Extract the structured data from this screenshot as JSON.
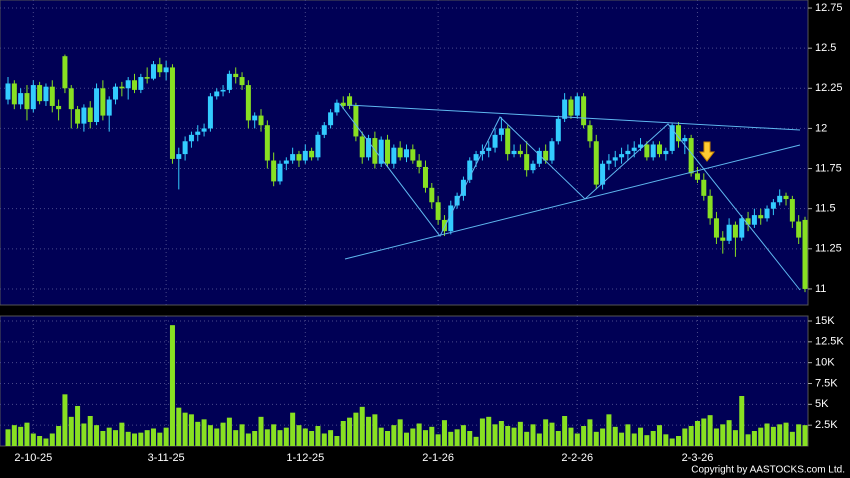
{
  "chart_data": {
    "type": "candlestick",
    "categories": [
      null,
      null,
      null,
      null,
      "2-10-25",
      null,
      null,
      null,
      null,
      null,
      null,
      null,
      null,
      null,
      null,
      null,
      null,
      null,
      null,
      null,
      null,
      null,
      null,
      null,
      null,
      "3-11-25",
      null,
      null,
      null,
      null,
      null,
      null,
      null,
      null,
      null,
      null,
      null,
      null,
      null,
      null,
      null,
      null,
      null,
      null,
      null,
      null,
      null,
      "1-12-25",
      null,
      null,
      null,
      null,
      null,
      null,
      null,
      null,
      null,
      null,
      null,
      null,
      null,
      null,
      null,
      null,
      null,
      null,
      null,
      null,
      "2-1-26",
      null,
      null,
      null,
      null,
      null,
      null,
      null,
      null,
      null,
      null,
      null,
      null,
      null,
      null,
      null,
      null,
      null,
      null,
      null,
      null,
      null,
      "2-2-26",
      null,
      null,
      null,
      null,
      null,
      null,
      null,
      null,
      null,
      null,
      null,
      null,
      null,
      null,
      null,
      null,
      null,
      null,
      "2-3-26",
      null,
      null,
      null,
      null,
      null,
      null,
      null,
      null,
      null,
      null,
      null,
      null,
      null,
      null,
      null,
      null,
      null
    ],
    "ohlc": [
      [
        12.18,
        12.32,
        12.15,
        12.28
      ],
      [
        12.28,
        12.3,
        12.12,
        12.15
      ],
      [
        12.15,
        12.25,
        12.12,
        12.22
      ],
      [
        12.22,
        12.27,
        12.05,
        12.12
      ],
      [
        12.12,
        12.3,
        12.1,
        12.27
      ],
      [
        12.27,
        12.29,
        12.15,
        12.17
      ],
      [
        12.17,
        12.28,
        12.14,
        12.26
      ],
      [
        12.26,
        12.3,
        12.1,
        12.14
      ],
      [
        12.14,
        12.18,
        12.05,
        12.12
      ],
      [
        12.45,
        12.46,
        12.22,
        12.25
      ],
      [
        12.25,
        12.27,
        12.0,
        12.12
      ],
      [
        12.12,
        12.14,
        12.0,
        12.03
      ],
      [
        12.03,
        12.15,
        11.98,
        12.13
      ],
      [
        12.13,
        12.17,
        12.0,
        12.04
      ],
      [
        12.04,
        12.28,
        12.02,
        12.25
      ],
      [
        12.25,
        12.3,
        12.05,
        12.08
      ],
      [
        12.08,
        12.2,
        11.98,
        12.18
      ],
      [
        12.18,
        12.28,
        12.15,
        12.26
      ],
      [
        12.26,
        12.29,
        12.2,
        12.25
      ],
      [
        12.25,
        12.32,
        12.18,
        12.3
      ],
      [
        12.3,
        12.34,
        12.22,
        12.24
      ],
      [
        12.24,
        12.34,
        12.22,
        12.32
      ],
      [
        12.32,
        12.38,
        12.28,
        12.31
      ],
      [
        12.31,
        12.42,
        12.3,
        12.4
      ],
      [
        12.4,
        12.44,
        12.32,
        12.35
      ],
      [
        12.35,
        12.42,
        12.3,
        12.38
      ],
      [
        12.38,
        12.4,
        11.78,
        11.81
      ],
      [
        11.81,
        11.88,
        11.62,
        11.84
      ],
      [
        11.84,
        11.95,
        11.8,
        11.92
      ],
      [
        11.92,
        11.98,
        11.88,
        11.96
      ],
      [
        11.96,
        12.02,
        11.92,
        11.98
      ],
      [
        11.98,
        12.03,
        11.95,
        12.0
      ],
      [
        12.0,
        12.22,
        11.98,
        12.2
      ],
      [
        12.2,
        12.25,
        12.18,
        12.23
      ],
      [
        12.23,
        12.27,
        12.2,
        12.24
      ],
      [
        12.24,
        12.36,
        12.22,
        12.34
      ],
      [
        12.34,
        12.38,
        12.28,
        12.32
      ],
      [
        12.32,
        12.35,
        12.24,
        12.27
      ],
      [
        12.27,
        12.3,
        12.0,
        12.05
      ],
      [
        12.05,
        12.1,
        12.0,
        12.08
      ],
      [
        12.08,
        12.12,
        11.98,
        12.02
      ],
      [
        12.02,
        12.05,
        11.75,
        11.8
      ],
      [
        11.8,
        11.85,
        11.64,
        11.67
      ],
      [
        11.67,
        11.8,
        11.65,
        11.78
      ],
      [
        11.78,
        11.82,
        11.74,
        11.8
      ],
      [
        11.8,
        11.88,
        11.78,
        11.84
      ],
      [
        11.84,
        11.86,
        11.76,
        11.8
      ],
      [
        11.8,
        11.9,
        11.78,
        11.86
      ],
      [
        11.86,
        11.88,
        11.8,
        11.82
      ],
      [
        11.82,
        11.98,
        11.8,
        11.96
      ],
      [
        11.96,
        12.04,
        11.94,
        12.02
      ],
      [
        12.02,
        12.12,
        12.0,
        12.1
      ],
      [
        12.1,
        12.18,
        12.08,
        12.16
      ],
      [
        12.16,
        12.2,
        12.12,
        12.14
      ],
      [
        12.2,
        12.22,
        12.12,
        12.14
      ],
      [
        12.14,
        12.16,
        11.92,
        11.95
      ],
      [
        11.95,
        11.98,
        11.78,
        11.82
      ],
      [
        11.82,
        11.96,
        11.8,
        11.94
      ],
      [
        11.94,
        11.98,
        11.75,
        11.78
      ],
      [
        11.78,
        11.95,
        11.76,
        11.93
      ],
      [
        11.93,
        11.96,
        11.76,
        11.78
      ],
      [
        11.78,
        11.9,
        11.75,
        11.88
      ],
      [
        11.88,
        11.92,
        11.8,
        11.82
      ],
      [
        11.82,
        11.9,
        11.79,
        11.87
      ],
      [
        11.87,
        11.9,
        11.78,
        11.8
      ],
      [
        11.8,
        11.84,
        11.72,
        11.76
      ],
      [
        11.76,
        11.8,
        11.6,
        11.63
      ],
      [
        11.63,
        11.66,
        11.5,
        11.54
      ],
      [
        11.54,
        11.58,
        11.4,
        11.43
      ],
      [
        11.43,
        11.46,
        11.33,
        11.36
      ],
      [
        11.36,
        11.55,
        11.34,
        11.52
      ],
      [
        11.52,
        11.6,
        11.5,
        11.58
      ],
      [
        11.58,
        11.7,
        11.55,
        11.68
      ],
      [
        11.68,
        11.82,
        11.66,
        11.8
      ],
      [
        11.8,
        11.86,
        11.76,
        11.84
      ],
      [
        11.84,
        11.9,
        11.8,
        11.86
      ],
      [
        11.86,
        11.92,
        11.82,
        11.88
      ],
      [
        11.88,
        12.0,
        11.85,
        11.96
      ],
      [
        11.96,
        12.07,
        11.92,
        12.0
      ],
      [
        12.0,
        12.02,
        11.8,
        11.84
      ],
      [
        11.84,
        11.9,
        11.82,
        11.86
      ],
      [
        11.86,
        11.9,
        11.82,
        11.84
      ],
      [
        11.84,
        11.92,
        11.7,
        11.74
      ],
      [
        11.74,
        11.8,
        11.72,
        11.78
      ],
      [
        11.78,
        11.88,
        11.76,
        11.86
      ],
      [
        11.86,
        11.9,
        11.78,
        11.8
      ],
      [
        11.8,
        11.94,
        11.78,
        11.92
      ],
      [
        11.92,
        12.08,
        11.9,
        12.06
      ],
      [
        12.06,
        12.22,
        12.04,
        12.18
      ],
      [
        12.18,
        12.2,
        12.06,
        12.08
      ],
      [
        12.08,
        12.22,
        12.06,
        12.2
      ],
      [
        12.2,
        12.22,
        12.0,
        12.02
      ],
      [
        12.02,
        12.05,
        11.88,
        11.92
      ],
      [
        11.92,
        11.96,
        11.62,
        11.65
      ],
      [
        11.65,
        11.8,
        11.62,
        11.78
      ],
      [
        11.78,
        11.84,
        11.74,
        11.8
      ],
      [
        11.8,
        11.86,
        11.76,
        11.82
      ],
      [
        11.82,
        11.88,
        11.78,
        11.84
      ],
      [
        11.84,
        11.9,
        11.8,
        11.86
      ],
      [
        11.86,
        11.92,
        11.82,
        11.88
      ],
      [
        11.88,
        11.94,
        11.86,
        11.9
      ],
      [
        11.9,
        11.92,
        11.8,
        11.82
      ],
      [
        11.82,
        11.92,
        11.8,
        11.9
      ],
      [
        11.9,
        11.92,
        11.82,
        11.84
      ],
      [
        11.84,
        11.88,
        11.8,
        11.86
      ],
      [
        11.86,
        12.03,
        11.84,
        12.02
      ],
      [
        12.02,
        12.04,
        11.88,
        11.92
      ],
      [
        11.92,
        11.96,
        11.84,
        11.94
      ],
      [
        11.94,
        11.96,
        11.7,
        11.72
      ],
      [
        11.72,
        11.76,
        11.66,
        11.68
      ],
      [
        11.68,
        11.72,
        11.55,
        11.58
      ],
      [
        11.58,
        11.62,
        11.4,
        11.44
      ],
      [
        11.44,
        11.48,
        11.28,
        11.32
      ],
      [
        11.32,
        11.36,
        11.22,
        11.3
      ],
      [
        11.3,
        11.44,
        11.28,
        11.4
      ],
      [
        11.4,
        11.42,
        11.2,
        11.32
      ],
      [
        11.32,
        11.46,
        11.3,
        11.44
      ],
      [
        11.44,
        11.48,
        11.36,
        11.4
      ],
      [
        11.4,
        11.5,
        11.38,
        11.46
      ],
      [
        11.46,
        11.5,
        11.4,
        11.44
      ],
      [
        11.44,
        11.52,
        11.42,
        11.5
      ],
      [
        11.5,
        11.56,
        11.46,
        11.54
      ],
      [
        11.54,
        11.62,
        11.52,
        11.58
      ],
      [
        11.58,
        11.6,
        11.52,
        11.56
      ],
      [
        11.56,
        11.58,
        11.38,
        11.42
      ],
      [
        11.42,
        11.46,
        11.28,
        11.32
      ],
      [
        11.43,
        11.45,
        10.98,
        11.0
      ]
    ],
    "volume": [
      2000,
      2500,
      2300,
      2800,
      1500,
      1200,
      900,
      1500,
      2400,
      6200,
      3500,
      4800,
      2700,
      3600,
      2500,
      1800,
      2200,
      1900,
      2800,
      1700,
      1500,
      1600,
      1900,
      2100,
      1600,
      2200,
      14500,
      4600,
      4000,
      3800,
      2900,
      3200,
      2500,
      2100,
      2800,
      3400,
      1900,
      2600,
      1500,
      1800,
      3500,
      2000,
      2600,
      1900,
      2200,
      4000,
      2500,
      2100,
      1800,
      2400,
      1500,
      1900,
      1200,
      3000,
      3400,
      4000,
      4700,
      3500,
      3800,
      2200,
      1800,
      2500,
      3200,
      1600,
      2100,
      2700,
      1900,
      2300,
      1400,
      3100,
      1700,
      2000,
      2500,
      1800,
      1100,
      3300,
      3500,
      2600,
      3000,
      2400,
      2200,
      2900,
      1700,
      2600,
      1500,
      3200,
      2800,
      1800,
      3600,
      2200,
      1500,
      2400,
      3200,
      1700,
      2100,
      3800,
      2300,
      1600,
      2600,
      1500,
      2200,
      1300,
      1800,
      2500,
      1400,
      900,
      1200,
      2100,
      2400,
      3000,
      3300,
      3700,
      2100,
      2600,
      3100,
      1900,
      6000,
      1400,
      1800,
      2200,
      2700,
      2300,
      2600,
      2800,
      1700,
      2600,
      2500
    ],
    "up_color": "#33ccff",
    "down_color": "#88e022",
    "volume_color": "#88e022",
    "ylim": [
      10.9,
      12.8
    ],
    "yticks": [
      11,
      11.25,
      11.5,
      11.75,
      12,
      12.25,
      12.5,
      12.75
    ],
    "volume_ylim": [
      0,
      15000
    ],
    "volume_yticks": [
      {
        "value": 2500,
        "label": "2.5K"
      },
      {
        "value": 5000,
        "label": "5K"
      },
      {
        "value": 7500,
        "label": "7.5K"
      },
      {
        "value": 10000,
        "label": "10K"
      },
      {
        "value": 12500,
        "label": "12.5K"
      },
      {
        "value": 15000,
        "label": "15K"
      }
    ],
    "grid": true,
    "copyright": "Copyright by AASTOCKS.com Ltd."
  }
}
